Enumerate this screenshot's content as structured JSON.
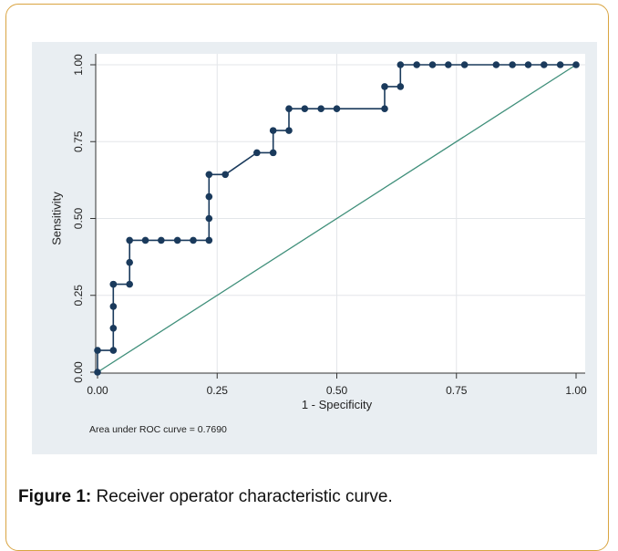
{
  "figure": {
    "caption_label": "Figure 1:",
    "caption_text": " Receiver operator characteristic curve.",
    "colors": {
      "frame_border": "#d9a441",
      "panel_bg": "#e9eef2",
      "curve": "#1a3a5c",
      "reference_line": "#3f8f7a"
    }
  },
  "chart_data": {
    "type": "line",
    "xlabel": "1 - Specificity",
    "ylabel": "Sensitivity",
    "xlim": [
      0,
      1
    ],
    "ylim": [
      0,
      1
    ],
    "xticks": [
      "0.00",
      "0.25",
      "0.50",
      "0.75",
      "1.00"
    ],
    "yticks": [
      "0.00",
      "0.25",
      "0.50",
      "0.75",
      "1.00"
    ],
    "grid": true,
    "annotation": "Area under ROC curve = 0.7690",
    "series": [
      {
        "marker": "circle",
        "x": [
          0.0,
          0.0,
          0.033,
          0.033,
          0.033,
          0.033,
          0.033,
          0.067,
          0.067,
          0.067,
          0.1,
          0.133,
          0.167,
          0.2,
          0.233,
          0.233,
          0.233,
          0.233,
          0.267,
          0.333,
          0.367,
          0.367,
          0.4,
          0.4,
          0.433,
          0.467,
          0.5,
          0.6,
          0.6,
          0.633,
          0.633,
          0.667,
          0.7,
          0.733,
          0.767,
          0.833,
          0.867,
          0.9,
          0.933,
          0.967,
          1.0
        ],
        "y": [
          0.0,
          0.071,
          0.071,
          0.143,
          0.214,
          0.286,
          0.286,
          0.286,
          0.357,
          0.429,
          0.429,
          0.429,
          0.429,
          0.429,
          0.429,
          0.5,
          0.571,
          0.643,
          0.643,
          0.714,
          0.714,
          0.786,
          0.786,
          0.857,
          0.857,
          0.857,
          0.857,
          0.857,
          0.929,
          0.929,
          1.0,
          1.0,
          1.0,
          1.0,
          1.0,
          1.0,
          1.0,
          1.0,
          1.0,
          1.0,
          1.0
        ]
      },
      {
        "style": "reference",
        "x": [
          0,
          1
        ],
        "y": [
          0,
          1
        ]
      }
    ]
  }
}
